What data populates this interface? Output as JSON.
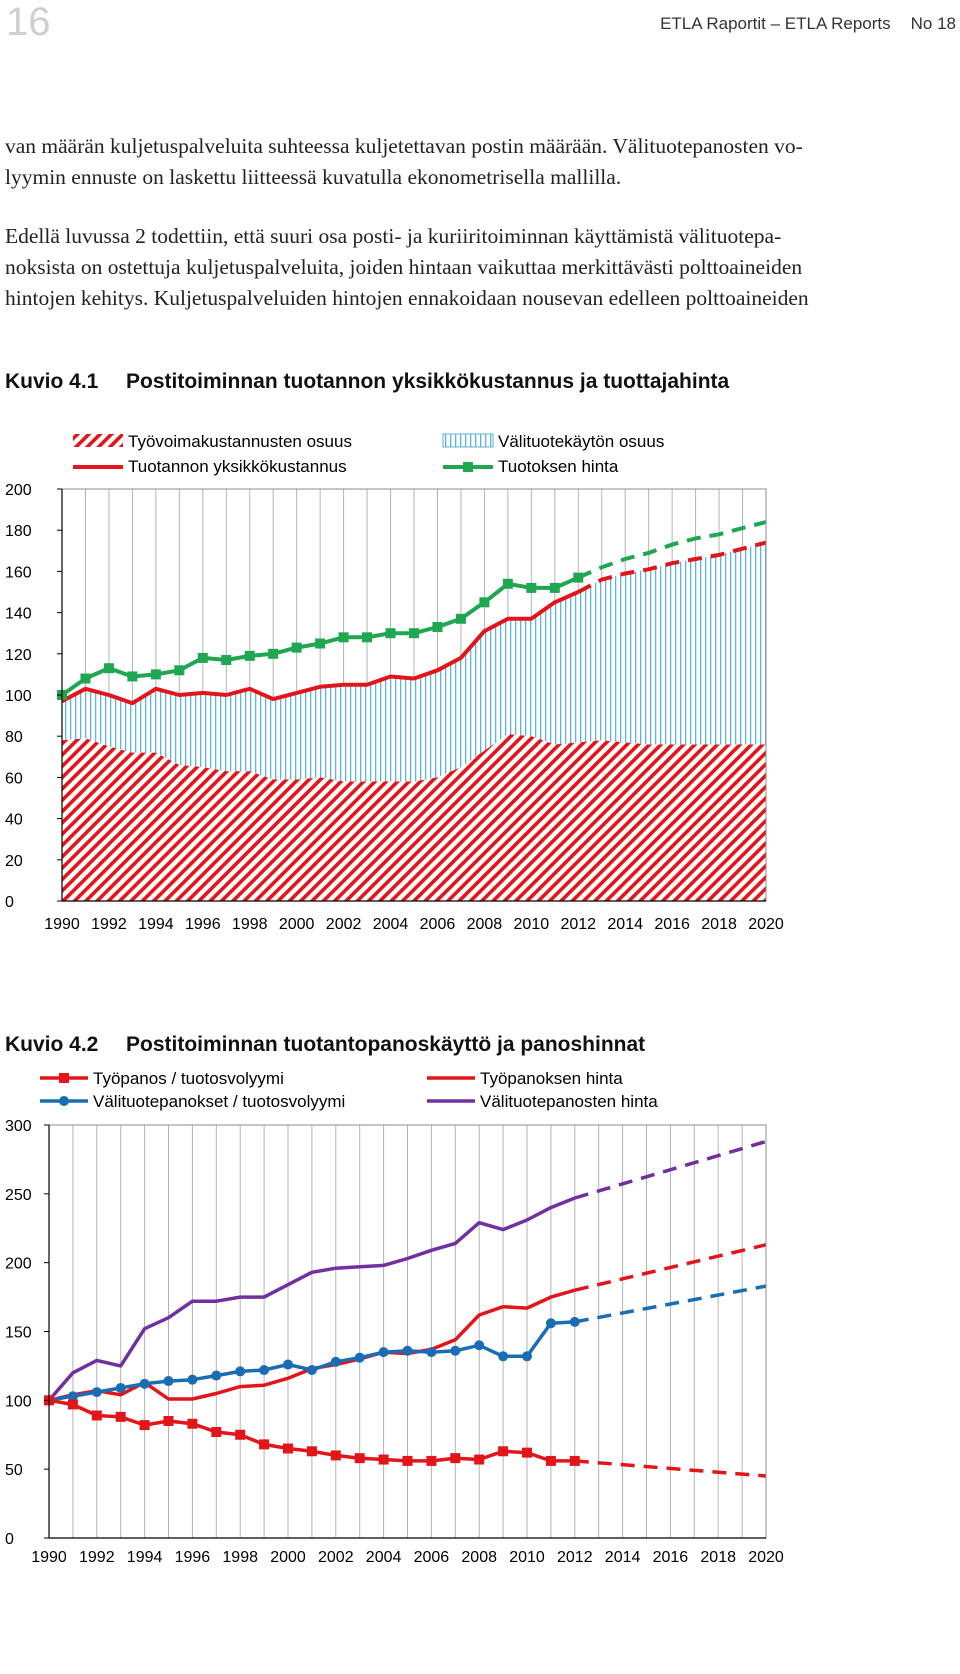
{
  "header": {
    "page_number": "16",
    "publication": "ETLA Raportit – ETLA Reports",
    "issue": "No 18"
  },
  "body": {
    "lines_a": [
      "van määrän kuljetuspalveluita suhteessa kuljetettavan postin määrään. Välituotepanosten vo-",
      "lyymin ennuste on laskettu liitteessä kuvatulla ekonometrisella mallilla."
    ],
    "lines_b": [
      "Edellä luvussa 2 todettiin, että suuri osa posti- ja kuriiritoiminnan käyttämistä välituotepa-",
      "noksista on ostettuja kuljetuspalveluita, joiden hintaan vaikuttaa merkittävästi polttoaineiden",
      "hintojen kehitys. Kuljetuspalveluiden hintojen ennakoidaan nousevan edelleen polttoaineiden"
    ]
  },
  "figures": [
    {
      "number": "Kuvio 4.1",
      "title": "Postitoiminnan tuotannon yksikkökustannus ja tuottajahinta"
    },
    {
      "number": "Kuvio 4.2",
      "title": "Postitoiminnan tuotantopanoskäyttö ja panoshinnat"
    }
  ],
  "colors": {
    "red": "#e3151a",
    "green": "#1ea650",
    "blue": "#1a6db5",
    "purple": "#7030a0",
    "hatch_blue": "#5fb3d9",
    "grid": "#b3b3b3"
  },
  "chart_data": [
    {
      "type": "area",
      "title": "Postitoiminnan tuotannon yksikkökustannus ja tuottajahinta",
      "x_ticks": [
        1990,
        1992,
        1994,
        1996,
        1998,
        2000,
        2002,
        2004,
        2006,
        2008,
        2010,
        2012,
        2014,
        2016,
        2018,
        2020
      ],
      "xlim": [
        1990,
        2020
      ],
      "ylim": [
        0,
        200
      ],
      "y_ticks": [
        0,
        20,
        40,
        60,
        80,
        100,
        120,
        140,
        160,
        180,
        200
      ],
      "grid": "vertical",
      "legend_position": "top",
      "actual_end_year": 2012,
      "series": [
        {
          "name": "Työvoimakustannusten osuus",
          "kind": "hatched-area",
          "color": "#e3151a",
          "x": [
            1990,
            1991,
            1992,
            1993,
            1994,
            1995,
            1996,
            1997,
            1998,
            1999,
            2000,
            2001,
            2002,
            2003,
            2004,
            2005,
            2006,
            2007,
            2008,
            2009,
            2010,
            2011,
            2012,
            2013,
            2014,
            2015,
            2016,
            2017,
            2018,
            2019,
            2020
          ],
          "values": [
            78,
            79,
            75,
            72,
            72,
            66,
            65,
            63,
            63,
            59,
            59,
            60,
            58,
            58,
            58,
            58,
            60,
            65,
            73,
            81,
            80,
            76,
            77,
            78,
            77,
            76,
            76,
            76,
            76,
            76,
            76
          ]
        },
        {
          "name": "Välituotekäytön osuus",
          "kind": "hatched-area",
          "color": "#5fb3d9"
        },
        {
          "name": "Tuotannon yksikkökustannus",
          "kind": "line",
          "color": "#e3151a",
          "x": [
            1990,
            1991,
            1992,
            1993,
            1994,
            1995,
            1996,
            1997,
            1998,
            1999,
            2000,
            2001,
            2002,
            2003,
            2004,
            2005,
            2006,
            2007,
            2008,
            2009,
            2010,
            2011,
            2012,
            2013,
            2014,
            2015,
            2016,
            2017,
            2018,
            2019,
            2020
          ],
          "values": [
            97,
            103,
            100,
            96,
            103,
            100,
            101,
            100,
            103,
            98,
            101,
            104,
            105,
            105,
            109,
            108,
            112,
            118,
            131,
            137,
            137,
            145,
            150,
            156,
            159,
            161,
            164,
            166,
            168,
            171,
            174
          ]
        },
        {
          "name": "Tuotoksen hinta",
          "kind": "line-markers",
          "color": "#1ea650",
          "x": [
            1990,
            1991,
            1992,
            1993,
            1994,
            1995,
            1996,
            1997,
            1998,
            1999,
            2000,
            2001,
            2002,
            2003,
            2004,
            2005,
            2006,
            2007,
            2008,
            2009,
            2010,
            2011,
            2012,
            2013,
            2014,
            2015,
            2016,
            2017,
            2018,
            2019,
            2020
          ],
          "values": [
            100,
            108,
            113,
            109,
            110,
            112,
            118,
            117,
            119,
            120,
            123,
            125,
            128,
            128,
            130,
            130,
            133,
            137,
            145,
            154,
            152,
            152,
            157,
            162,
            166,
            169,
            173,
            176,
            178,
            181,
            184
          ]
        }
      ]
    },
    {
      "type": "line",
      "title": "Postitoiminnan tuotantopanoskäyttö ja panoshinnat",
      "x_ticks": [
        1990,
        1992,
        1994,
        1996,
        1998,
        2000,
        2002,
        2004,
        2006,
        2008,
        2010,
        2012,
        2014,
        2016,
        2018,
        2020
      ],
      "xlim": [
        1990,
        2020
      ],
      "ylim": [
        0,
        300
      ],
      "y_ticks": [
        0,
        50,
        100,
        150,
        200,
        250,
        300
      ],
      "grid": "vertical",
      "legend_position": "top",
      "actual_end_year": 2012,
      "series": [
        {
          "name": "Työpanos / tuotosvolyymi",
          "color": "#e3151a",
          "markers": true,
          "x": [
            1990,
            1991,
            1992,
            1993,
            1994,
            1995,
            1996,
            1997,
            1998,
            1999,
            2000,
            2001,
            2002,
            2003,
            2004,
            2005,
            2006,
            2007,
            2008,
            2009,
            2010,
            2011,
            2012,
            2020
          ],
          "values": [
            100,
            97,
            89,
            88,
            82,
            85,
            83,
            77,
            75,
            68,
            65,
            63,
            60,
            58,
            57,
            56,
            56,
            58,
            57,
            63,
            62,
            56,
            56,
            45
          ]
        },
        {
          "name": "Työpanoksen hinta",
          "color": "#e3151a",
          "markers": false,
          "x": [
            1990,
            1991,
            1992,
            1993,
            1994,
            1995,
            1996,
            1997,
            1998,
            1999,
            2000,
            2001,
            2002,
            2003,
            2004,
            2005,
            2006,
            2007,
            2008,
            2009,
            2010,
            2011,
            2012,
            2020
          ],
          "values": [
            100,
            104,
            107,
            104,
            113,
            101,
            101,
            105,
            110,
            111,
            116,
            123,
            126,
            130,
            135,
            134,
            137,
            144,
            162,
            168,
            167,
            175,
            180,
            213
          ]
        },
        {
          "name": "Välituotepanokset / tuotosvolyymi",
          "color": "#1a6db5",
          "markers": true,
          "x": [
            1990,
            1991,
            1992,
            1993,
            1994,
            1995,
            1996,
            1997,
            1998,
            1999,
            2000,
            2001,
            2002,
            2003,
            2004,
            2005,
            2006,
            2007,
            2008,
            2009,
            2010,
            2011,
            2012,
            2020
          ],
          "values": [
            100,
            103,
            106,
            109,
            112,
            114,
            115,
            118,
            121,
            122,
            126,
            122,
            128,
            131,
            135,
            136,
            135,
            136,
            140,
            132,
            132,
            156,
            157,
            183
          ]
        },
        {
          "name": "Välituotepanosten hinta",
          "color": "#7030a0",
          "markers": false,
          "x": [
            1990,
            1991,
            1992,
            1993,
            1994,
            1995,
            1996,
            1997,
            1998,
            1999,
            2000,
            2001,
            2002,
            2003,
            2004,
            2005,
            2006,
            2007,
            2008,
            2009,
            2010,
            2011,
            2012,
            2020
          ],
          "values": [
            100,
            120,
            129,
            125,
            152,
            160,
            172,
            172,
            175,
            175,
            184,
            193,
            196,
            197,
            198,
            203,
            209,
            214,
            229,
            224,
            231,
            240,
            247,
            288
          ]
        }
      ]
    }
  ]
}
